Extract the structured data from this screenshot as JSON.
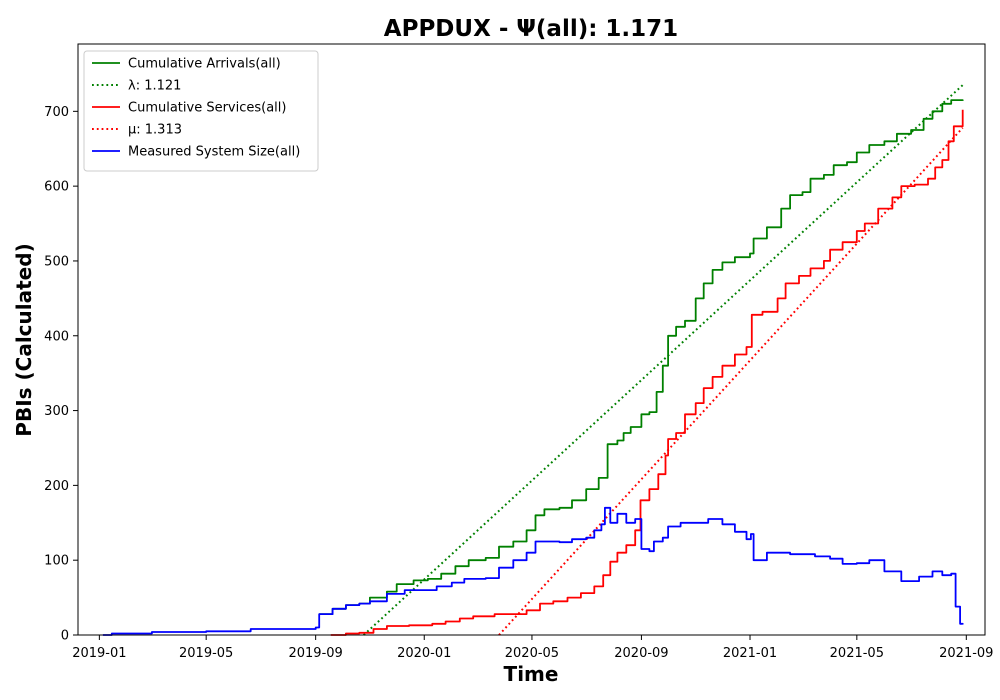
{
  "chart_data": {
    "type": "line",
    "title": "APPDUX -  Ψ(all): 1.171",
    "xlabel": "Time",
    "ylabel": "PBIs (Calculated)",
    "xlim": [
      "2018-12-08",
      "2021-09-22"
    ],
    "ylim": [
      0,
      790
    ],
    "x_ticks": [
      "2019-01",
      "2019-05",
      "2019-09",
      "2020-01",
      "2020-05",
      "2020-09",
      "2021-01",
      "2021-05",
      "2021-09"
    ],
    "y_ticks": [
      0,
      100,
      200,
      300,
      400,
      500,
      600,
      700
    ],
    "grid": false,
    "legend_position": "top-left",
    "legend": [
      {
        "label": "Cumulative Arrivals(all)",
        "color": "#008000",
        "style": "solid"
      },
      {
        "label": "λ: 1.121",
        "color": "#008000",
        "style": "dotted"
      },
      {
        "label": "Cumulative Services(all)",
        "color": "#ff0000",
        "style": "solid"
      },
      {
        "label": "μ: 1.313",
        "color": "#ff0000",
        "style": "dotted"
      },
      {
        "label": "Measured System Size(all)",
        "color": "#0000ff",
        "style": "solid"
      }
    ],
    "series": [
      {
        "name": "Cumulative Arrivals(all)",
        "color": "#008000",
        "style": "solid",
        "step": true,
        "points": [
          [
            "2019-09-05",
            28
          ],
          [
            "2019-09-20",
            35
          ],
          [
            "2019-10-05",
            40
          ],
          [
            "2019-10-20",
            42
          ],
          [
            "2019-11-01",
            50
          ],
          [
            "2019-11-20",
            58
          ],
          [
            "2019-12-01",
            68
          ],
          [
            "2019-12-20",
            73
          ],
          [
            "2020-01-05",
            75
          ],
          [
            "2020-01-20",
            82
          ],
          [
            "2020-02-05",
            92
          ],
          [
            "2020-02-20",
            100
          ],
          [
            "2020-03-10",
            103
          ],
          [
            "2020-03-25",
            118
          ],
          [
            "2020-04-10",
            125
          ],
          [
            "2020-04-25",
            140
          ],
          [
            "2020-05-05",
            160
          ],
          [
            "2020-05-15",
            168
          ],
          [
            "2020-06-01",
            170
          ],
          [
            "2020-06-15",
            180
          ],
          [
            "2020-07-01",
            195
          ],
          [
            "2020-07-15",
            210
          ],
          [
            "2020-07-25",
            255
          ],
          [
            "2020-08-05",
            260
          ],
          [
            "2020-08-12",
            270
          ],
          [
            "2020-08-20",
            278
          ],
          [
            "2020-09-01",
            295
          ],
          [
            "2020-09-10",
            298
          ],
          [
            "2020-09-18",
            325
          ],
          [
            "2020-09-25",
            360
          ],
          [
            "2020-10-01",
            400
          ],
          [
            "2020-10-10",
            412
          ],
          [
            "2020-10-20",
            420
          ],
          [
            "2020-11-01",
            450
          ],
          [
            "2020-11-10",
            470
          ],
          [
            "2020-11-20",
            488
          ],
          [
            "2020-12-01",
            498
          ],
          [
            "2020-12-15",
            505
          ],
          [
            "2021-01-01",
            510
          ],
          [
            "2021-01-05",
            530
          ],
          [
            "2021-01-20",
            545
          ],
          [
            "2021-02-05",
            570
          ],
          [
            "2021-02-15",
            588
          ],
          [
            "2021-03-01",
            592
          ],
          [
            "2021-03-10",
            610
          ],
          [
            "2021-03-25",
            615
          ],
          [
            "2021-04-05",
            628
          ],
          [
            "2021-04-20",
            632
          ],
          [
            "2021-05-01",
            645
          ],
          [
            "2021-05-15",
            655
          ],
          [
            "2021-06-01",
            660
          ],
          [
            "2021-06-15",
            670
          ],
          [
            "2021-07-01",
            675
          ],
          [
            "2021-07-15",
            690
          ],
          [
            "2021-07-25",
            700
          ],
          [
            "2021-08-05",
            710
          ],
          [
            "2021-08-15",
            715
          ],
          [
            "2021-08-28",
            714
          ]
        ]
      },
      {
        "name": "λ: 1.121",
        "color": "#008000",
        "style": "dotted",
        "step": false,
        "points": [
          [
            "2019-10-25",
            0
          ],
          [
            "2021-08-28",
            735
          ]
        ]
      },
      {
        "name": "Cumulative Services(all)",
        "color": "#ff0000",
        "style": "solid",
        "step": true,
        "points": [
          [
            "2019-09-18",
            0
          ],
          [
            "2019-10-05",
            2
          ],
          [
            "2019-10-20",
            3
          ],
          [
            "2019-11-05",
            8
          ],
          [
            "2019-11-20",
            12
          ],
          [
            "2019-12-15",
            13
          ],
          [
            "2020-01-10",
            15
          ],
          [
            "2020-01-25",
            18
          ],
          [
            "2020-02-10",
            22
          ],
          [
            "2020-02-25",
            25
          ],
          [
            "2020-03-20",
            28
          ],
          [
            "2020-04-25",
            33
          ],
          [
            "2020-05-10",
            42
          ],
          [
            "2020-05-25",
            45
          ],
          [
            "2020-06-10",
            50
          ],
          [
            "2020-06-25",
            56
          ],
          [
            "2020-07-10",
            65
          ],
          [
            "2020-07-20",
            80
          ],
          [
            "2020-07-28",
            98
          ],
          [
            "2020-08-05",
            110
          ],
          [
            "2020-08-15",
            120
          ],
          [
            "2020-08-25",
            140
          ],
          [
            "2020-08-31",
            180
          ],
          [
            "2020-09-10",
            195
          ],
          [
            "2020-09-20",
            215
          ],
          [
            "2020-09-28",
            240
          ],
          [
            "2020-10-01",
            262
          ],
          [
            "2020-10-10",
            270
          ],
          [
            "2020-10-20",
            295
          ],
          [
            "2020-11-01",
            310
          ],
          [
            "2020-11-10",
            330
          ],
          [
            "2020-11-20",
            345
          ],
          [
            "2020-12-01",
            360
          ],
          [
            "2020-12-15",
            375
          ],
          [
            "2020-12-28",
            385
          ],
          [
            "2021-01-03",
            428
          ],
          [
            "2021-01-15",
            432
          ],
          [
            "2021-02-01",
            450
          ],
          [
            "2021-02-10",
            470
          ],
          [
            "2021-02-25",
            480
          ],
          [
            "2021-03-10",
            490
          ],
          [
            "2021-03-25",
            500
          ],
          [
            "2021-04-01",
            515
          ],
          [
            "2021-04-15",
            525
          ],
          [
            "2021-05-01",
            540
          ],
          [
            "2021-05-10",
            550
          ],
          [
            "2021-05-25",
            570
          ],
          [
            "2021-06-10",
            585
          ],
          [
            "2021-06-20",
            600
          ],
          [
            "2021-07-05",
            602
          ],
          [
            "2021-07-20",
            610
          ],
          [
            "2021-07-28",
            625
          ],
          [
            "2021-08-05",
            635
          ],
          [
            "2021-08-12",
            660
          ],
          [
            "2021-08-18",
            680
          ],
          [
            "2021-08-28",
            702
          ]
        ]
      },
      {
        "name": "μ: 1.313",
        "color": "#ff0000",
        "style": "dotted",
        "step": false,
        "points": [
          [
            "2020-03-25",
            0
          ],
          [
            "2021-08-28",
            678
          ]
        ]
      },
      {
        "name": "Measured System Size(all)",
        "color": "#0000ff",
        "style": "solid",
        "step": true,
        "points": [
          [
            "2019-01-05",
            0
          ],
          [
            "2019-01-15",
            2
          ],
          [
            "2019-03-01",
            4
          ],
          [
            "2019-05-01",
            5
          ],
          [
            "2019-06-20",
            8
          ],
          [
            "2019-09-01",
            10
          ],
          [
            "2019-09-05",
            28
          ],
          [
            "2019-09-20",
            35
          ],
          [
            "2019-10-05",
            40
          ],
          [
            "2019-10-20",
            42
          ],
          [
            "2019-11-01",
            45
          ],
          [
            "2019-11-20",
            55
          ],
          [
            "2019-12-10",
            60
          ],
          [
            "2020-01-01",
            60
          ],
          [
            "2020-01-15",
            65
          ],
          [
            "2020-02-01",
            70
          ],
          [
            "2020-02-15",
            75
          ],
          [
            "2020-03-10",
            76
          ],
          [
            "2020-03-25",
            90
          ],
          [
            "2020-04-10",
            100
          ],
          [
            "2020-04-25",
            110
          ],
          [
            "2020-05-05",
            125
          ],
          [
            "2020-06-01",
            124
          ],
          [
            "2020-06-15",
            128
          ],
          [
            "2020-07-01",
            130
          ],
          [
            "2020-07-10",
            140
          ],
          [
            "2020-07-18",
            148
          ],
          [
            "2020-07-22",
            170
          ],
          [
            "2020-07-28",
            150
          ],
          [
            "2020-08-05",
            162
          ],
          [
            "2020-08-15",
            150
          ],
          [
            "2020-08-25",
            155
          ],
          [
            "2020-09-01",
            115
          ],
          [
            "2020-09-10",
            112
          ],
          [
            "2020-09-15",
            125
          ],
          [
            "2020-09-25",
            130
          ],
          [
            "2020-10-01",
            145
          ],
          [
            "2020-10-15",
            150
          ],
          [
            "2020-11-01",
            150
          ],
          [
            "2020-11-15",
            155
          ],
          [
            "2020-12-01",
            148
          ],
          [
            "2020-12-15",
            138
          ],
          [
            "2020-12-28",
            128
          ],
          [
            "2021-01-02",
            135
          ],
          [
            "2021-01-05",
            100
          ],
          [
            "2021-01-20",
            110
          ],
          [
            "2021-02-15",
            108
          ],
          [
            "2021-03-15",
            105
          ],
          [
            "2021-04-01",
            102
          ],
          [
            "2021-04-15",
            95
          ],
          [
            "2021-05-01",
            96
          ],
          [
            "2021-05-15",
            100
          ],
          [
            "2021-06-01",
            85
          ],
          [
            "2021-06-20",
            72
          ],
          [
            "2021-07-10",
            78
          ],
          [
            "2021-07-25",
            85
          ],
          [
            "2021-08-05",
            80
          ],
          [
            "2021-08-15",
            82
          ],
          [
            "2021-08-20",
            38
          ],
          [
            "2021-08-25",
            15
          ],
          [
            "2021-08-28",
            14
          ]
        ]
      }
    ]
  }
}
